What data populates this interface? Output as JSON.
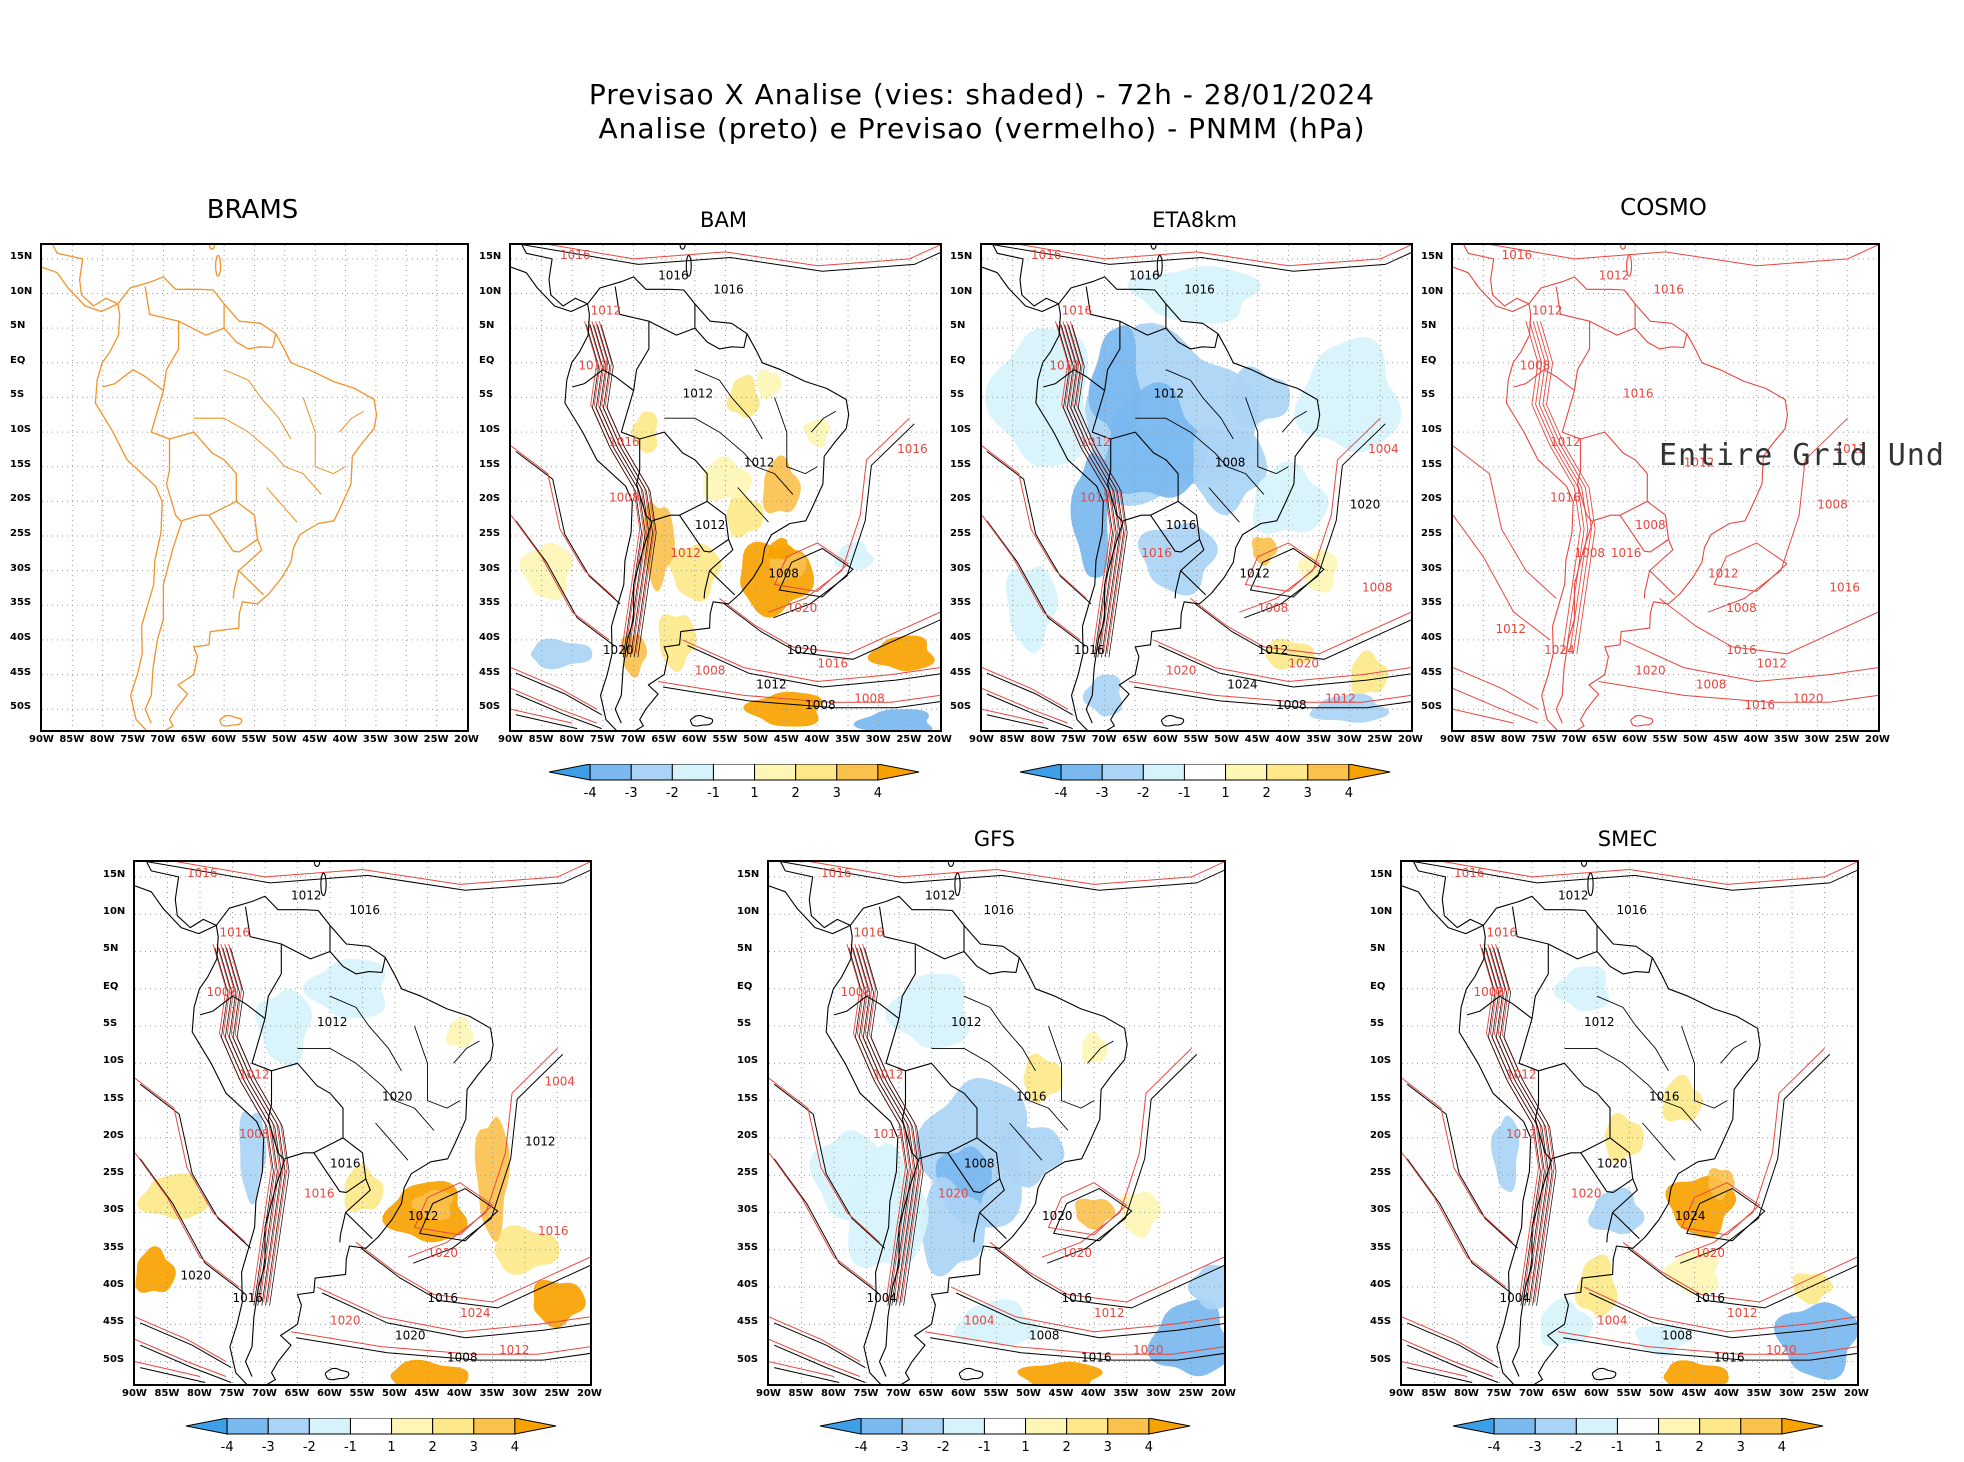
{
  "header": {
    "line1": "Previsao X Analise (vies: shaded) - 72h - 28/01/2024",
    "line2": "Analise (preto) e Previsao (vermelho) - PNMM (hPa)"
  },
  "colors": {
    "analysis_contour": "#000000",
    "forecast_contour": "#e8463f",
    "map_outline": "#f0932b",
    "neg4": "#3d9fe8",
    "neg3": "#7ab8f0",
    "neg2": "#aad4f6",
    "neg1": "#d6f3fb",
    "pos1": "#fdf6b5",
    "pos2": "#fde98a",
    "pos3": "#fbc14d",
    "pos4": "#f7a200"
  },
  "axes": {
    "lat_labels": [
      "15N",
      "10N",
      "5N",
      "EQ",
      "5S",
      "10S",
      "15S",
      "20S",
      "25S",
      "30S",
      "35S",
      "40S",
      "45S",
      "50S"
    ],
    "lon_labels": [
      "90W",
      "85W",
      "80W",
      "75W",
      "70W",
      "65W",
      "60W",
      "55W",
      "50W",
      "45W",
      "40W",
      "35W",
      "30W",
      "25W",
      "20W"
    ]
  },
  "colorbar": {
    "labels": [
      "-4",
      "-3",
      "-2",
      "-1",
      "1",
      "2",
      "3",
      "4"
    ]
  },
  "panels": [
    {
      "id": "brams",
      "title": "BRAMS",
      "contours": []
    },
    {
      "id": "bam",
      "title": "BAM",
      "contours": [
        "1016",
        "1016",
        "1012",
        "1016",
        "1012",
        "1012",
        "1016",
        "1012",
        "1008",
        "1012",
        "1012",
        "1008",
        "1020",
        "1020",
        "1016",
        "1012",
        "1008",
        "1020",
        "1008",
        "1008",
        "1016"
      ]
    },
    {
      "id": "eta",
      "title": "ETA8km",
      "contours": [
        "1016",
        "1016",
        "1016",
        "1016",
        "1012",
        "1012",
        "1012",
        "1008",
        "1012",
        "1016",
        "1016",
        "1012",
        "1008",
        "1012",
        "1020",
        "1024",
        "1020",
        "1016",
        "1012",
        "1008",
        "1004",
        "1020",
        "1008"
      ]
    },
    {
      "id": "cosmo",
      "title": "COSMO",
      "overlay": "Entire Grid Und",
      "contours": [
        "1016",
        "1012",
        "1012",
        "1016",
        "1008",
        "1016",
        "1012",
        "1012",
        "1016",
        "1008",
        "1016",
        "1012",
        "1008",
        "1016",
        "1012",
        "1008",
        "1020",
        "1024",
        "1020",
        "1016",
        "1012",
        "1008",
        "1016",
        "1012",
        "1008"
      ]
    },
    {
      "id": "bottom-left",
      "title": "",
      "contours": [
        "1016",
        "1012",
        "1016",
        "1016",
        "1008",
        "1012",
        "1012",
        "1020",
        "1008",
        "1016",
        "1016",
        "1012",
        "1020",
        "1016",
        "1024",
        "1020",
        "1020",
        "1016",
        "1012",
        "1008",
        "1004",
        "1012",
        "1016",
        "1020"
      ]
    },
    {
      "id": "gfs",
      "title": "GFS",
      "contours": [
        "1016",
        "1012",
        "1016",
        "1016",
        "1008",
        "1012",
        "1012",
        "1016",
        "1012",
        "1008",
        "1020",
        "1020",
        "1020",
        "1016",
        "1012",
        "1008",
        "1004",
        "1004",
        "1020",
        "1016"
      ]
    },
    {
      "id": "smec",
      "title": "SMEC",
      "contours": [
        "1016",
        "1012",
        "1016",
        "1016",
        "1008",
        "1012",
        "1012",
        "1016",
        "1012",
        "1020",
        "1020",
        "1024",
        "1020",
        "1016",
        "1012",
        "1008",
        "1004",
        "1004",
        "1020",
        "1016"
      ]
    }
  ],
  "chart_data": {
    "type": "heatmap",
    "title": "Previsao X Analise (vies: shaded) - 72h - 28/01/2024",
    "subtitle": "Analise (preto) e Previsao (vermelho) - PNMM (hPa)",
    "xlabel": "",
    "ylabel": "",
    "x_ticks": [
      "90W",
      "85W",
      "80W",
      "75W",
      "70W",
      "65W",
      "60W",
      "55W",
      "50W",
      "45W",
      "40W",
      "35W",
      "30W",
      "25W",
      "20W"
    ],
    "y_ticks": [
      "15N",
      "10N",
      "5N",
      "EQ",
      "5S",
      "10S",
      "15S",
      "20S",
      "25S",
      "30S",
      "35S",
      "40S",
      "45S",
      "50S"
    ],
    "xlim": [
      -90,
      -20
    ],
    "ylim": [
      -53,
      17
    ],
    "colorbar_levels": [
      -4,
      -3,
      -2,
      -1,
      1,
      2,
      3,
      4
    ],
    "panels": [
      "BRAMS",
      "BAM",
      "ETA8km",
      "COSMO",
      "",
      "GFS",
      "SMEC"
    ],
    "isobar_levels_hPa": [
      1004,
      1008,
      1012,
      1016,
      1020,
      1024
    ]
  }
}
